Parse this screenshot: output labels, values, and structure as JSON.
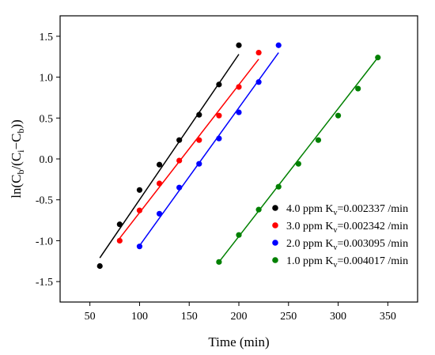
{
  "chart_data": {
    "type": "scatter",
    "xlabel": "Time (min)",
    "ylabel": "ln(C_b/(C_i−C_b))",
    "xlim": [
      20,
      380
    ],
    "ylim": [
      -1.75,
      1.75
    ],
    "x_ticks": [
      50,
      100,
      150,
      200,
      250,
      300,
      350
    ],
    "y_ticks": [
      -1.5,
      -1.0,
      -0.5,
      0.0,
      0.5,
      1.0,
      1.5
    ],
    "x_tick_labels": [
      "50",
      "100",
      "150",
      "200",
      "250",
      "300",
      "350"
    ],
    "y_tick_labels": [
      "-1.5",
      "-1.0",
      "-0.5",
      "0.0",
      "0.5",
      "1.0",
      "1.5"
    ],
    "legend_position": "bottom-right",
    "grid": false,
    "series": [
      {
        "name": "4.0 ppm K_v=0.002337 /min",
        "legend_prefix": "4.0 ppm K",
        "legend_sub": "v",
        "legend_suffix": "=0.002337 /min",
        "color": "#000000",
        "x": [
          60,
          80,
          100,
          120,
          140,
          160,
          180,
          200
        ],
        "y": [
          -1.31,
          -0.8,
          -0.38,
          -0.07,
          0.23,
          0.54,
          0.91,
          1.39
        ],
        "fit": [
          [
            60,
            -1.21
          ],
          [
            200,
            1.28
          ]
        ]
      },
      {
        "name": "3.0 ppm K_v=0.002342 /min",
        "legend_prefix": "3.0 ppm K",
        "legend_sub": "v",
        "legend_suffix": "=0.002342 /min",
        "color": "#ff0000",
        "x": [
          80,
          100,
          120,
          140,
          160,
          180,
          200,
          220
        ],
        "y": [
          -1.0,
          -0.63,
          -0.3,
          -0.02,
          0.23,
          0.53,
          0.88,
          1.3
        ],
        "fit": [
          [
            80,
            -0.97
          ],
          [
            220,
            1.22
          ]
        ]
      },
      {
        "name": "2.0 ppm K_v=0.003095 /min",
        "legend_prefix": "2.0 ppm K",
        "legend_sub": "v",
        "legend_suffix": "=0.003095 /min",
        "color": "#0000ff",
        "x": [
          100,
          120,
          140,
          160,
          180,
          200,
          220,
          240
        ],
        "y": [
          -1.07,
          -0.67,
          -0.35,
          -0.06,
          0.25,
          0.57,
          0.94,
          1.39
        ],
        "fit": [
          [
            100,
            -1.06
          ],
          [
            240,
            1.3
          ]
        ]
      },
      {
        "name": "1.0 ppm K_v=0.004017 /min",
        "legend_prefix": "1.0 ppm K",
        "legend_sub": "v",
        "legend_suffix": "=0.004017 /min",
        "color": "#008000",
        "x": [
          180,
          200,
          220,
          240,
          260,
          280,
          300,
          320,
          340
        ],
        "y": [
          -1.26,
          -0.93,
          -0.62,
          -0.34,
          -0.06,
          0.23,
          0.53,
          0.86,
          1.24
        ],
        "fit": [
          [
            180,
            -1.26
          ],
          [
            340,
            1.24
          ]
        ]
      }
    ]
  }
}
